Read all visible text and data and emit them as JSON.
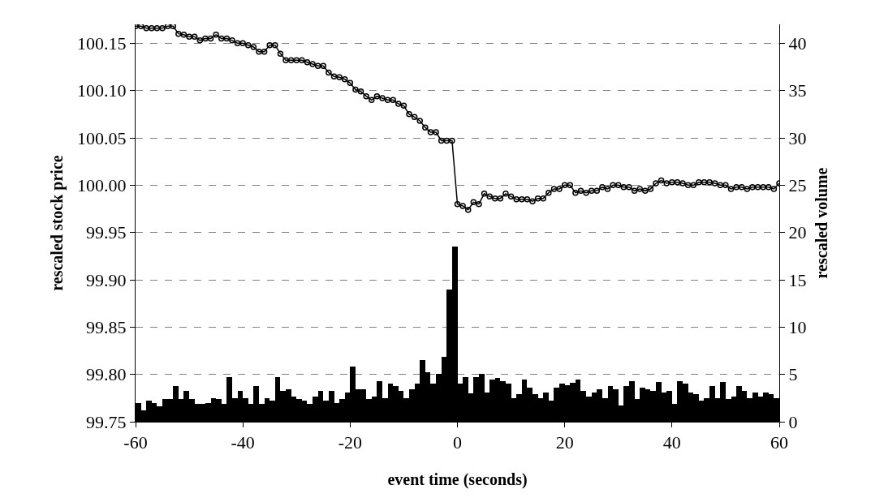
{
  "chart_data": {
    "type": "line",
    "xlabel": "event time (seconds)",
    "ylabel": "rescaled stock price",
    "y2label": "rescaled volume",
    "xlim": [
      -60,
      60
    ],
    "xticks": [
      -60,
      -40,
      -20,
      0,
      20,
      40,
      60
    ],
    "ylim": [
      99.75,
      100.17
    ],
    "yticks": [
      {
        "value": 99.75,
        "label": "99.75"
      },
      {
        "value": 99.8,
        "label": "99.80"
      },
      {
        "value": 99.85,
        "label": "99.85"
      },
      {
        "value": 99.9,
        "label": "99.90"
      },
      {
        "value": 99.95,
        "label": "99.95"
      },
      {
        "value": 100.0,
        "label": "100.00"
      },
      {
        "value": 100.05,
        "label": "100.05"
      },
      {
        "value": 100.1,
        "label": "100.10"
      },
      {
        "value": 100.15,
        "label": "100.15"
      }
    ],
    "y2lim": [
      0,
      42
    ],
    "y2ticks": [
      0,
      5,
      10,
      15,
      20,
      25,
      30,
      35,
      40
    ],
    "grid": "y",
    "marker": "circle",
    "line_style": "solid",
    "series": [
      {
        "type": "bar",
        "axis": "y2",
        "color": "#000000",
        "x": [
          -59.5,
          -58.5,
          -57.5,
          -56.5,
          -55.5,
          -54.5,
          -53.5,
          -52.5,
          -51.5,
          -50.5,
          -49.5,
          -48.5,
          -47.5,
          -46.5,
          -45.5,
          -44.5,
          -43.5,
          -42.5,
          -41.5,
          -40.5,
          -39.5,
          -38.5,
          -37.5,
          -36.5,
          -35.5,
          -34.5,
          -33.5,
          -32.5,
          -31.5,
          -30.5,
          -29.5,
          -28.5,
          -27.5,
          -26.5,
          -25.5,
          -24.5,
          -23.5,
          -22.5,
          -21.5,
          -20.5,
          -19.5,
          -18.5,
          -17.5,
          -16.5,
          -15.5,
          -14.5,
          -13.5,
          -12.5,
          -11.5,
          -10.5,
          -9.5,
          -8.5,
          -7.5,
          -6.5,
          -5.5,
          -4.5,
          -3.5,
          -2.5,
          -1.5,
          -0.5,
          0.5,
          1.5,
          2.5,
          3.5,
          4.5,
          5.5,
          6.5,
          7.5,
          8.5,
          9.5,
          10.5,
          11.5,
          12.5,
          13.5,
          14.5,
          15.5,
          16.5,
          17.5,
          18.5,
          19.5,
          20.5,
          21.5,
          22.5,
          23.5,
          24.5,
          25.5,
          26.5,
          27.5,
          28.5,
          29.5,
          30.5,
          31.5,
          32.5,
          33.5,
          34.5,
          35.5,
          36.5,
          37.5,
          38.5,
          39.5,
          40.5,
          41.5,
          42.5,
          43.5,
          44.5,
          45.5,
          46.5,
          47.5,
          48.5,
          49.5,
          50.5,
          51.5,
          52.5,
          53.5,
          54.5,
          55.5,
          56.5,
          57.5,
          58.5,
          59.5
        ],
        "values": [
          2.0,
          1.2,
          2.2,
          2.0,
          1.6,
          2.4,
          2.4,
          3.8,
          2.4,
          3.3,
          2.4,
          1.9,
          1.9,
          2.0,
          2.5,
          2.4,
          1.9,
          4.7,
          2.5,
          3.3,
          2.5,
          1.9,
          3.8,
          1.9,
          2.5,
          2.2,
          4.7,
          3.3,
          3.4,
          2.7,
          2.4,
          2.2,
          1.9,
          2.7,
          3.3,
          2.2,
          3.3,
          2.0,
          2.4,
          3.1,
          5.8,
          3.4,
          3.4,
          2.4,
          2.7,
          4.3,
          2.5,
          4.0,
          3.8,
          3.3,
          2.5,
          3.4,
          4.0,
          6.5,
          5.2,
          4.0,
          5.1,
          6.9,
          14,
          18.5,
          4.0,
          4.7,
          3.0,
          4.7,
          5.1,
          3.1,
          4.5,
          4.6,
          4.3,
          4.0,
          2.5,
          2.9,
          4.5,
          3.6,
          2.9,
          2.5,
          3.1,
          2.2,
          3.6,
          4.0,
          3.9,
          4.1,
          4.5,
          3.3,
          2.7,
          3.1,
          3.4,
          2.5,
          3.8,
          3.4,
          1.7,
          3.8,
          4.3,
          2.4,
          3.6,
          3.4,
          3.3,
          4.2,
          3.1,
          3.3,
          1.9,
          4.3,
          4.0,
          3.1,
          2.9,
          2.2,
          2.5,
          3.8,
          2.5,
          4.2,
          2.4,
          2.7,
          3.8,
          3.3,
          2.5,
          3.1,
          2.7,
          3.1,
          2.9,
          2.5
        ]
      },
      {
        "color": "#000000",
        "x": [
          -60,
          -59,
          -58,
          -57,
          -56,
          -55,
          -54,
          -53,
          -52,
          -51,
          -50,
          -49,
          -48,
          -47,
          -46,
          -45,
          -44,
          -43,
          -42,
          -41,
          -40,
          -39,
          -38,
          -37,
          -36,
          -35,
          -34,
          -33,
          -32,
          -31,
          -30,
          -29,
          -28,
          -27,
          -26,
          -25,
          -24,
          -23,
          -22,
          -21,
          -20,
          -19,
          -18,
          -17,
          -16,
          -15,
          -14,
          -13,
          -12,
          -11,
          -10,
          -9,
          -8,
          -7,
          -6,
          -5,
          -4,
          -3,
          -2,
          -1,
          0,
          1,
          2,
          3,
          4,
          5,
          6,
          7,
          8,
          9,
          10,
          11,
          12,
          13,
          14,
          15,
          16,
          17,
          18,
          19,
          20,
          21,
          22,
          23,
          24,
          25,
          26,
          27,
          28,
          29,
          30,
          31,
          32,
          33,
          34,
          35,
          36,
          37,
          38,
          39,
          40,
          41,
          42,
          43,
          44,
          45,
          46,
          47,
          48,
          49,
          50,
          51,
          52,
          53,
          54,
          55,
          56,
          57,
          58,
          59,
          60
        ],
        "values": [
          100.168,
          100.168,
          100.166,
          100.166,
          100.166,
          100.166,
          100.168,
          100.168,
          100.16,
          100.159,
          100.157,
          100.157,
          100.153,
          100.155,
          100.155,
          100.159,
          100.155,
          100.155,
          100.153,
          100.15,
          100.15,
          100.148,
          100.146,
          100.141,
          100.141,
          100.148,
          100.148,
          100.139,
          100.132,
          100.132,
          100.132,
          100.132,
          100.13,
          100.128,
          100.126,
          100.126,
          100.119,
          100.115,
          100.114,
          100.112,
          100.108,
          100.101,
          100.099,
          100.094,
          100.09,
          100.094,
          100.092,
          100.09,
          100.09,
          100.086,
          100.084,
          100.075,
          100.072,
          100.068,
          100.061,
          100.056,
          100.056,
          100.047,
          100.047,
          100.047,
          99.98,
          99.978,
          99.974,
          99.982,
          99.98,
          99.991,
          99.988,
          99.986,
          99.986,
          99.991,
          99.988,
          99.985,
          99.985,
          99.985,
          99.983,
          99.986,
          99.986,
          99.992,
          99.996,
          99.996,
          100.0,
          100.0,
          99.992,
          99.994,
          99.992,
          99.994,
          99.994,
          99.998,
          99.996,
          100.0,
          100.0,
          99.998,
          99.998,
          99.994,
          99.996,
          99.994,
          99.996,
          100.002,
          100.005,
          100.002,
          100.003,
          100.003,
          100.002,
          100.0,
          100.0,
          100.003,
          100.003,
          100.003,
          100.002,
          100.0,
          100.0,
          99.996,
          99.998,
          99.998,
          99.996,
          99.998,
          99.998,
          99.998,
          99.998,
          99.996,
          100.002
        ]
      }
    ]
  }
}
